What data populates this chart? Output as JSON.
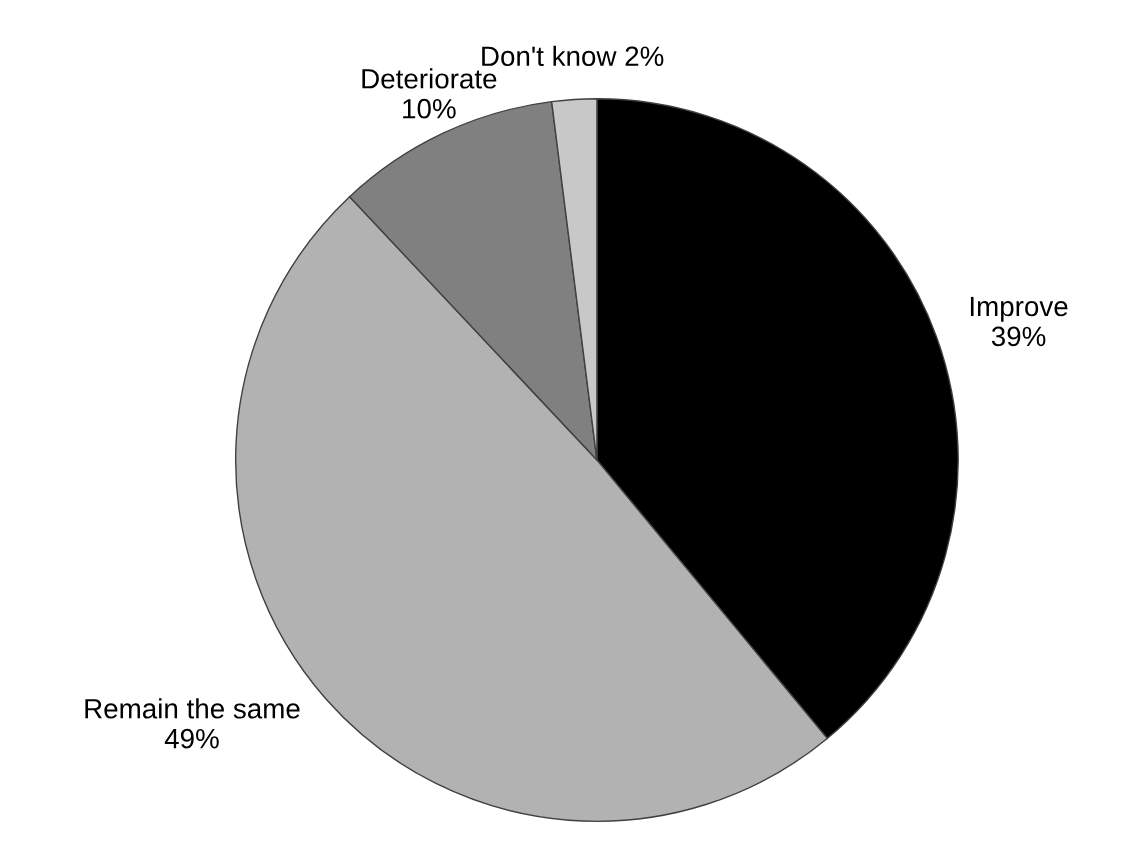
{
  "chart_data": {
    "type": "pie",
    "categories": [
      "Improve",
      "Remain the same",
      "Deteriorate",
      "Don't know"
    ],
    "values": [
      39,
      49,
      10,
      2
    ],
    "colors": [
      "#000000",
      "#b2b2b2",
      "#808080",
      "#c8c8c8"
    ],
    "value_labels": [
      "39%",
      "49%",
      "10%",
      "2%"
    ]
  }
}
